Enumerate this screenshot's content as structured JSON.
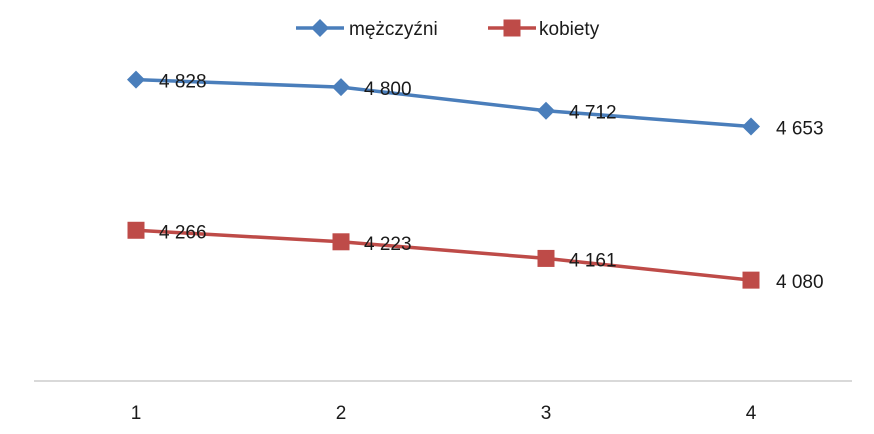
{
  "chart_data": {
    "type": "line",
    "x": [
      1,
      2,
      3,
      4
    ],
    "tick_labels": [
      "1",
      "2",
      "3",
      "4"
    ],
    "series": [
      {
        "name": "mężczyźni",
        "values": [
          4828,
          4800,
          4712,
          4653
        ],
        "labels": [
          "4 828",
          "4 800",
          "4 712",
          "4 653"
        ],
        "color": "#4a7ebb",
        "marker": "diamond"
      },
      {
        "name": "kobiety",
        "values": [
          4266,
          4223,
          4161,
          4080
        ],
        "labels": [
          "4 266",
          "4 223",
          "4 161",
          "4 080"
        ],
        "color": "#be4b48",
        "marker": "square"
      }
    ],
    "ylim": [
      3700,
      5125
    ],
    "y_axis_visible": false,
    "grid": false,
    "legend_position": "top-center",
    "axis_color": "#d9d9d9"
  }
}
